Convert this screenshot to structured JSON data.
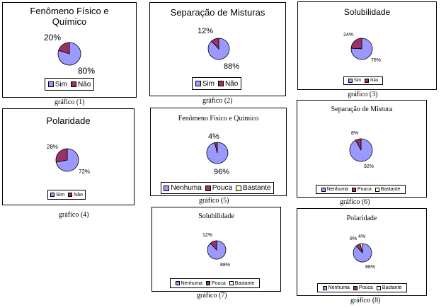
{
  "colors": {
    "sim": "#9999ff",
    "nao": "#993366",
    "nenhuma": "#9999ff",
    "pouca": "#993366",
    "bastante": "#ffffcc"
  },
  "chart_data": [
    {
      "type": "pie",
      "title": "Fenômeno Físico e Químico",
      "caption": "gráfico (1)",
      "slices": [
        {
          "name": "Sim",
          "value": 80,
          "label": "80%"
        },
        {
          "name": "Não",
          "value": 20,
          "label": "20%"
        }
      ],
      "legend": "bottom"
    },
    {
      "type": "pie",
      "title": "Separação de Misturas",
      "caption": "gráfico (2)",
      "slices": [
        {
          "name": "Sim",
          "value": 88,
          "label": "88%"
        },
        {
          "name": "Não",
          "value": 12,
          "label": "12%"
        }
      ],
      "legend": "bottom"
    },
    {
      "type": "pie",
      "title": "Solubilidade",
      "caption": "gráfico (3)",
      "slices": [
        {
          "name": "Sim",
          "value": 76,
          "label": "76%"
        },
        {
          "name": "Não",
          "value": 24,
          "label": "24%"
        }
      ],
      "legend": "bottom"
    },
    {
      "type": "pie",
      "title": "Polaridade",
      "caption": "gráfico (4)",
      "slices": [
        {
          "name": "Sim",
          "value": 72,
          "label": "72%"
        },
        {
          "name": "Não",
          "value": 28,
          "label": "28%"
        }
      ],
      "legend": "bottom"
    },
    {
      "type": "pie",
      "title": "Fenômeno Físico e Químico",
      "caption": "gráfico (5)",
      "slices": [
        {
          "name": "Nenhuma",
          "value": 96,
          "label": "96%"
        },
        {
          "name": "Pouca",
          "value": 4,
          "label": "4%"
        },
        {
          "name": "Bastante",
          "value": 0,
          "label": ""
        }
      ],
      "legend": "bottom"
    },
    {
      "type": "pie",
      "title": "Separação de Mistura",
      "caption": "gráfico (6)",
      "slices": [
        {
          "name": "Nenhuma",
          "value": 92,
          "label": "92%"
        },
        {
          "name": "Pouca",
          "value": 8,
          "label": "8%"
        },
        {
          "name": "Bastante",
          "value": 0,
          "label": ""
        }
      ],
      "legend": "bottom"
    },
    {
      "type": "pie",
      "title": "Solubilidade",
      "caption": "gráfico (7)",
      "slices": [
        {
          "name": "Nenhuma",
          "value": 88,
          "label": "88%"
        },
        {
          "name": "Pouca",
          "value": 12,
          "label": "12%"
        },
        {
          "name": "Bastante",
          "value": 0,
          "label": ""
        }
      ],
      "legend": "bottom"
    },
    {
      "type": "pie",
      "title": "Polaridade",
      "caption": "gráfico (8)",
      "slices": [
        {
          "name": "Nenhuma",
          "value": 88,
          "label": "88%"
        },
        {
          "name": "Pouca",
          "value": 8,
          "label": "8%"
        },
        {
          "name": "Bastante",
          "value": 4,
          "label": "4%"
        }
      ],
      "legend": "bottom"
    }
  ]
}
